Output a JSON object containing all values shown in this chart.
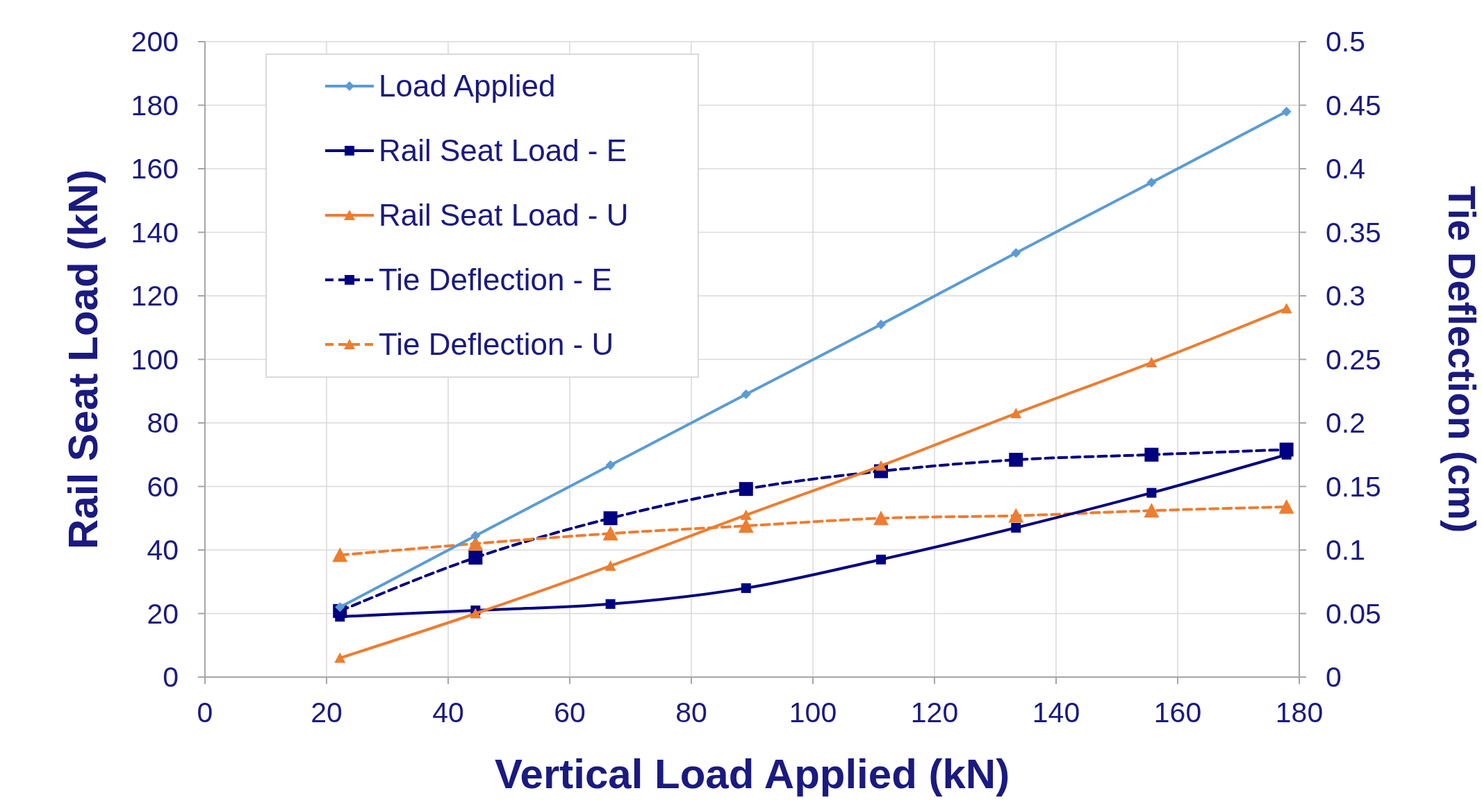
{
  "chart_data": {
    "type": "line",
    "xlabel": "Vertical Load Applied (kN)",
    "ylabel": "Rail Seat Load (kN)",
    "y2label": "Tie Deflection (cm)",
    "x": [
      22.2,
      44.5,
      66.7,
      89.0,
      111.2,
      133.4,
      155.7,
      177.9
    ],
    "xlim": [
      0,
      180
    ],
    "xticks": [
      0,
      20,
      40,
      60,
      80,
      100,
      120,
      140,
      160,
      180
    ],
    "ylim": [
      0,
      200
    ],
    "yticks": [
      0,
      20,
      40,
      60,
      80,
      100,
      120,
      140,
      160,
      180,
      200
    ],
    "y2lim": [
      0,
      0.5
    ],
    "y2ticks": [
      0,
      0.05,
      0.1,
      0.15,
      0.2,
      0.25,
      0.3,
      0.35,
      0.4,
      0.45,
      0.5
    ],
    "grid": true,
    "legend": "top left",
    "series": [
      {
        "name": "Load Applied",
        "color": "#5b9bd5",
        "marker": "diamond",
        "line_style": "solid",
        "values": [
          22,
          44.5,
          66.7,
          89,
          111,
          133.5,
          155.7,
          178
        ]
      },
      {
        "name": "Rail Seat Load - E",
        "color": "#000080",
        "marker": "square",
        "line_style": "solid",
        "values": [
          19,
          21,
          23,
          28,
          37,
          47,
          58,
          70
        ]
      },
      {
        "name": "Rail Seat Load - U",
        "color": "#ed7d31",
        "marker": "triangle",
        "line_style": "solid",
        "values": [
          6,
          20,
          35,
          51,
          66.5,
          83,
          99,
          116
        ]
      },
      {
        "name": "Tie Deflection - E",
        "color": "#000080",
        "marker": "square",
        "line_style": "dashed",
        "axis": "y2",
        "values": [
          0.052,
          0.094,
          0.125,
          0.148,
          0.162,
          0.171,
          0.175,
          0.179
        ]
      },
      {
        "name": "Tie Deflection - U",
        "color": "#ed7d31",
        "marker": "triangle",
        "line_style": "dashed",
        "axis": "y2",
        "values": [
          0.096,
          0.105,
          0.113,
          0.119,
          0.125,
          0.127,
          0.131,
          0.134
        ]
      }
    ]
  }
}
